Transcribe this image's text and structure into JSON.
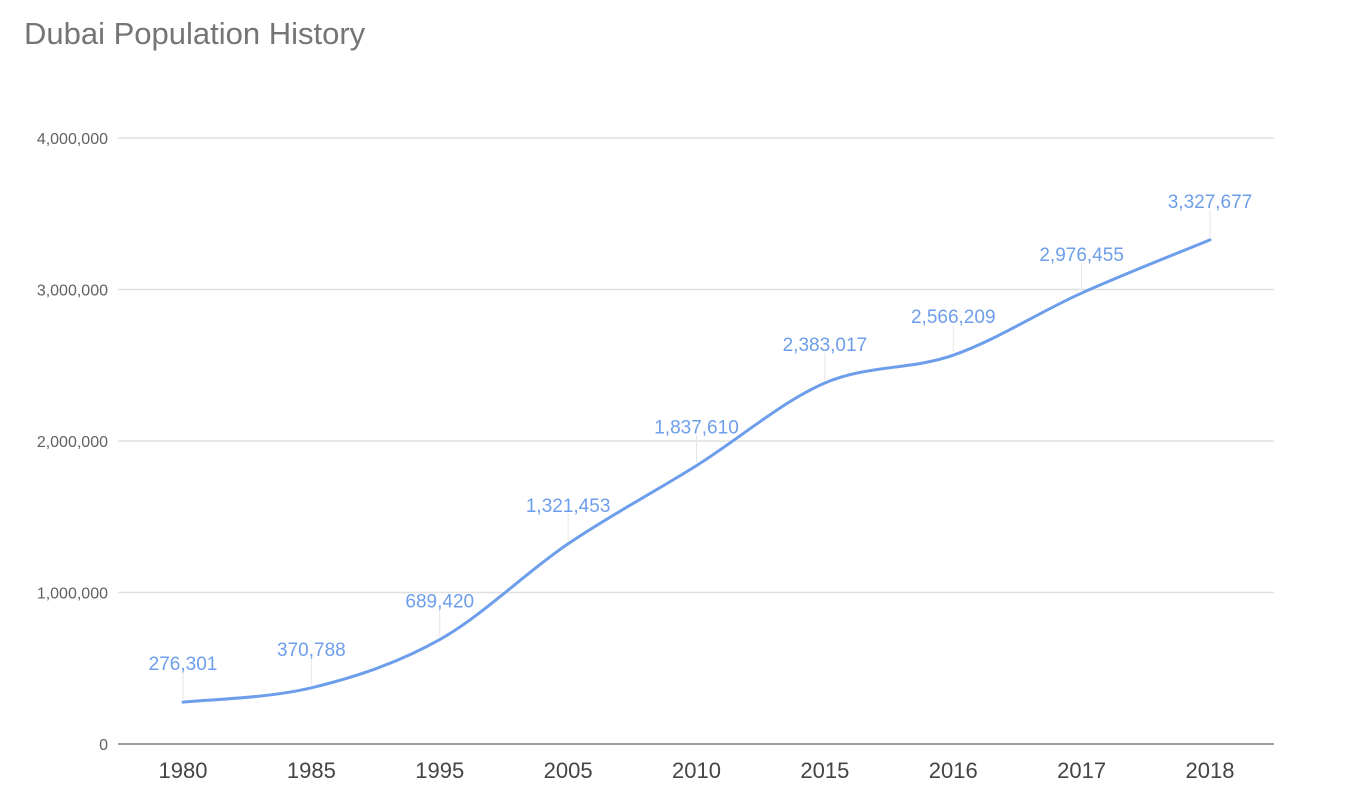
{
  "chart_data": {
    "type": "line",
    "title": "Dubai Population History",
    "xlabel": "",
    "ylabel": "",
    "categories": [
      "1980",
      "1985",
      "1995",
      "2005",
      "2010",
      "2015",
      "2016",
      "2017",
      "2018"
    ],
    "series": [
      {
        "values": [
          276301,
          370788,
          689420,
          1321453,
          1837610,
          2383017,
          2566209,
          2976455,
          3327677
        ],
        "data_labels": [
          "276,301",
          "370,788",
          "689,420",
          "1,321,453",
          "1,837,610",
          "2,383,017",
          "2,566,209",
          "2,976,455",
          "3,327,677"
        ],
        "color": "#6d9eeb"
      }
    ],
    "ylim": [
      0,
      4000000
    ],
    "y_ticks": [
      0,
      1000000,
      2000000,
      3000000,
      4000000
    ],
    "y_tick_labels": [
      "0",
      "1,000,000",
      "2,000,000",
      "3,000,000",
      "4,000,000"
    ],
    "grid": true,
    "legend": "none",
    "curve": "smooth",
    "colors": {
      "line": "#6d9eeb",
      "gridline": "#e0e0e0",
      "axis": "#9e9e9e",
      "title": "#757575"
    }
  }
}
